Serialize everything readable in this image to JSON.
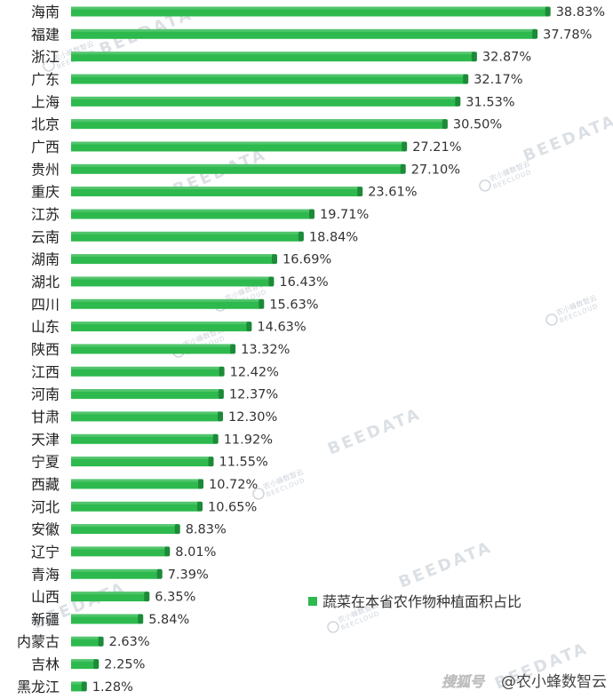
{
  "chart_data": {
    "type": "bar",
    "orientation": "horizontal",
    "categories": [
      "海南",
      "福建",
      "浙江",
      "广东",
      "上海",
      "北京",
      "广西",
      "贵州",
      "重庆",
      "江苏",
      "云南",
      "湖南",
      "湖北",
      "四川",
      "山东",
      "陕西",
      "江西",
      "河南",
      "甘肃",
      "天津",
      "宁夏",
      "西藏",
      "河北",
      "安徽",
      "辽宁",
      "青海",
      "山西",
      "新疆",
      "内蒙古",
      "吉林",
      "黑龙江"
    ],
    "series": [
      {
        "name": "蔬菜在本省农作物种植面积占比",
        "values": [
          38.83,
          37.78,
          32.87,
          32.17,
          31.53,
          30.5,
          27.21,
          27.1,
          23.61,
          19.71,
          18.84,
          16.69,
          16.43,
          15.63,
          14.63,
          13.32,
          12.42,
          12.37,
          12.3,
          11.92,
          11.55,
          10.72,
          10.65,
          8.83,
          8.01,
          7.39,
          6.35,
          5.84,
          2.63,
          2.25,
          1.28
        ]
      }
    ],
    "value_suffix": "%",
    "xlim": [
      0,
      40
    ],
    "grid": false,
    "axes_visible": false,
    "legend": "lower-right",
    "colors": {
      "bar": "#2db94d",
      "bar_end": "#1c8a38"
    }
  },
  "watermark": {
    "brand": "BEEDATA",
    "cn_name": "农小蜂数智云",
    "en_name": "BEECLOUD"
  },
  "footer": {
    "logo": "搜狐号",
    "account": "@农小蜂数智云"
  }
}
